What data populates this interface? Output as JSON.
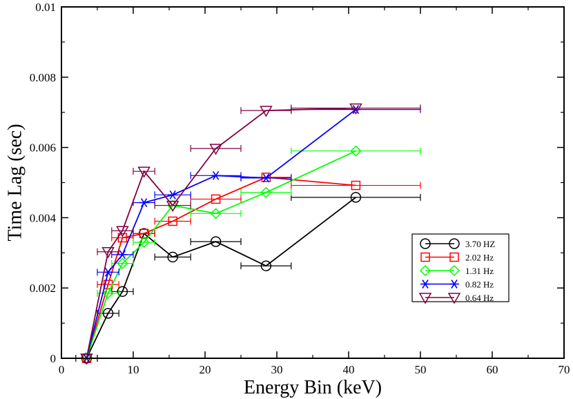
{
  "chart_data": {
    "type": "line",
    "title": "",
    "xlabel": "Energy Bin (keV)",
    "ylabel": "Time Lag (sec)",
    "xlim": [
      0,
      70
    ],
    "ylim": [
      0,
      0.01
    ],
    "x_ticks": [
      0,
      10,
      20,
      30,
      40,
      50,
      60,
      70
    ],
    "x_tick_labels": [
      "0",
      "10",
      "20",
      "30",
      "40",
      "50",
      "60",
      "70"
    ],
    "y_ticks": [
      0,
      0.002,
      0.004,
      0.006,
      0.008,
      0.01
    ],
    "y_tick_labels": [
      "0",
      "0.002",
      "0.004",
      "0.006",
      "0.008",
      "0.01"
    ],
    "legend_position": "right-middle",
    "series": [
      {
        "name": "3.70 HZ",
        "color": "#000000",
        "marker": "circle",
        "points": [
          {
            "x": 3.5,
            "y": 0.0,
            "xerr": [
              2.0,
              5.0
            ]
          },
          {
            "x": 6.5,
            "y": 0.00128,
            "xerr": [
              5.0,
              8.0
            ]
          },
          {
            "x": 8.5,
            "y": 0.0019,
            "xerr": [
              7.0,
              10.0
            ]
          },
          {
            "x": 11.5,
            "y": 0.00355,
            "xerr": [
              10.0,
              13.0
            ]
          },
          {
            "x": 15.5,
            "y": 0.00288,
            "xerr": [
              13.0,
              18.0
            ]
          },
          {
            "x": 21.5,
            "y": 0.00332,
            "xerr": [
              18.0,
              25.0
            ]
          },
          {
            "x": 28.5,
            "y": 0.00263,
            "xerr": [
              25.0,
              32.0
            ]
          },
          {
            "x": 41.0,
            "y": 0.00458,
            "xerr": [
              32.0,
              50.0
            ]
          }
        ]
      },
      {
        "name": "2.02 Hz",
        "color": "#ff0000",
        "marker": "square",
        "points": [
          {
            "x": 3.5,
            "y": 0.0,
            "xerr": [
              2.0,
              5.0
            ]
          },
          {
            "x": 6.5,
            "y": 0.0021,
            "xerr": [
              5.0,
              8.0
            ]
          },
          {
            "x": 8.5,
            "y": 0.00343,
            "xerr": [
              7.0,
              10.0
            ]
          },
          {
            "x": 11.5,
            "y": 0.00355,
            "xerr": [
              10.0,
              13.0
            ]
          },
          {
            "x": 15.5,
            "y": 0.0039,
            "xerr": [
              13.0,
              18.0
            ]
          },
          {
            "x": 21.5,
            "y": 0.00453,
            "xerr": [
              18.0,
              25.0
            ]
          },
          {
            "x": 28.5,
            "y": 0.00515,
            "xerr": [
              25.0,
              32.0
            ]
          },
          {
            "x": 41.0,
            "y": 0.00492,
            "xerr": [
              32.0,
              50.0
            ]
          }
        ]
      },
      {
        "name": "1.31 Hz",
        "color": "#00ff00",
        "marker": "diamond",
        "points": [
          {
            "x": 3.5,
            "y": 0.0,
            "xerr": [
              2.0,
              5.0
            ]
          },
          {
            "x": 6.5,
            "y": 0.00185,
            "xerr": [
              5.0,
              8.0
            ]
          },
          {
            "x": 8.5,
            "y": 0.0027,
            "xerr": [
              7.0,
              10.0
            ]
          },
          {
            "x": 11.5,
            "y": 0.0033,
            "xerr": [
              10.0,
              13.0
            ]
          },
          {
            "x": 15.5,
            "y": 0.00435,
            "xerr": [
              13.0,
              18.0
            ]
          },
          {
            "x": 21.5,
            "y": 0.00412,
            "xerr": [
              18.0,
              25.0
            ]
          },
          {
            "x": 28.5,
            "y": 0.00472,
            "xerr": [
              25.0,
              32.0
            ]
          },
          {
            "x": 41.0,
            "y": 0.0059,
            "xerr": [
              32.0,
              50.0
            ]
          }
        ]
      },
      {
        "name": "0.82 Hz",
        "color": "#0000ff",
        "marker": "star",
        "points": [
          {
            "x": 3.5,
            "y": 0.0,
            "xerr": [
              2.0,
              5.0
            ]
          },
          {
            "x": 6.5,
            "y": 0.00245,
            "xerr": [
              5.0,
              8.0
            ]
          },
          {
            "x": 8.5,
            "y": 0.00295,
            "xerr": [
              7.0,
              10.0
            ]
          },
          {
            "x": 11.5,
            "y": 0.00443,
            "xerr": [
              10.0,
              13.0
            ]
          },
          {
            "x": 15.5,
            "y": 0.00465,
            "xerr": [
              13.0,
              18.0
            ]
          },
          {
            "x": 21.5,
            "y": 0.0052,
            "xerr": [
              18.0,
              25.0
            ]
          },
          {
            "x": 28.5,
            "y": 0.00513,
            "xerr": [
              25.0,
              32.0
            ]
          },
          {
            "x": 41.0,
            "y": 0.00708,
            "xerr": [
              32.0,
              50.0
            ]
          }
        ]
      },
      {
        "name": "0.64 Hz",
        "color": "#800040",
        "marker": "triangle-down",
        "points": [
          {
            "x": 3.5,
            "y": 0.0,
            "xerr": [
              2.0,
              5.0
            ]
          },
          {
            "x": 6.5,
            "y": 0.00303,
            "xerr": [
              5.0,
              8.0
            ]
          },
          {
            "x": 8.5,
            "y": 0.00363,
            "xerr": [
              7.0,
              10.0
            ]
          },
          {
            "x": 11.5,
            "y": 0.00532,
            "xerr": [
              10.0,
              13.0
            ]
          },
          {
            "x": 15.5,
            "y": 0.00435,
            "xerr": [
              13.0,
              18.0
            ]
          },
          {
            "x": 21.5,
            "y": 0.00597,
            "xerr": [
              18.0,
              25.0
            ]
          },
          {
            "x": 28.5,
            "y": 0.00705,
            "xerr": [
              25.0,
              32.0
            ]
          },
          {
            "x": 41.0,
            "y": 0.00712,
            "xerr": [
              32.0,
              50.0
            ]
          }
        ]
      }
    ]
  }
}
